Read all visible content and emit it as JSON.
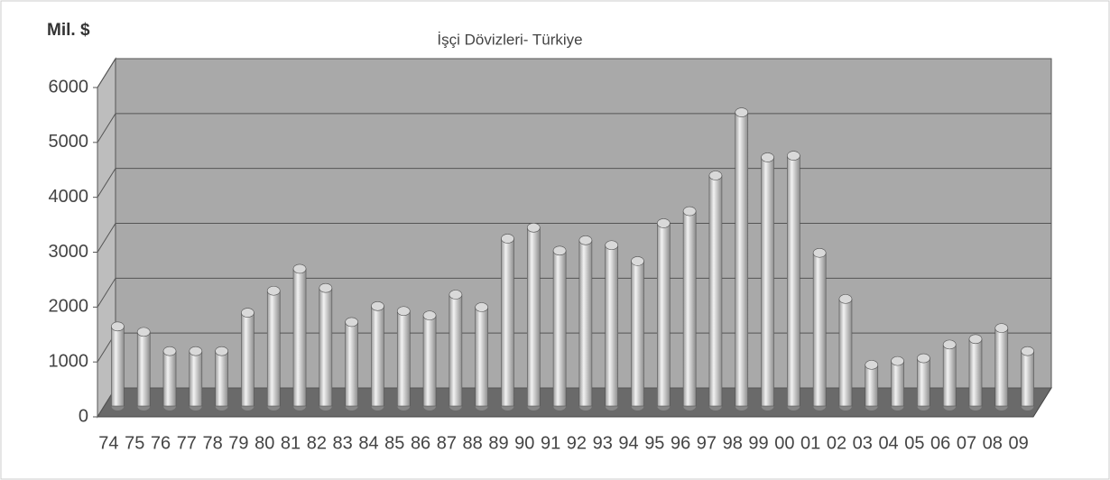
{
  "chart_data": {
    "type": "bar3d",
    "title": "İşçi Dövizleri- Türkiye",
    "y_label": "Mil. $",
    "categories": [
      "74",
      "75",
      "76",
      "77",
      "78",
      "79",
      "80",
      "81",
      "82",
      "83",
      "84",
      "85",
      "86",
      "87",
      "88",
      "89",
      "90",
      "91",
      "92",
      "93",
      "94",
      "95",
      "96",
      "97",
      "98",
      "99",
      "00",
      "01",
      "02",
      "03",
      "04",
      "05",
      "06",
      "07",
      "08",
      "09"
    ],
    "values": [
      1450,
      1350,
      1000,
      1000,
      1000,
      1700,
      2100,
      2500,
      2150,
      1530,
      1820,
      1730,
      1650,
      2030,
      1800,
      3050,
      3250,
      2830,
      3020,
      2930,
      2640,
      3330,
      3550,
      4200,
      5350,
      4530,
      4560,
      2790,
      1950,
      750,
      820,
      870,
      1120,
      1220,
      1420,
      1000
    ],
    "color": "#d9d9d9",
    "ylim": [
      0,
      6000
    ],
    "yticks": [
      0,
      1000,
      2000,
      3000,
      4000,
      5000,
      6000
    ],
    "grid": true
  }
}
